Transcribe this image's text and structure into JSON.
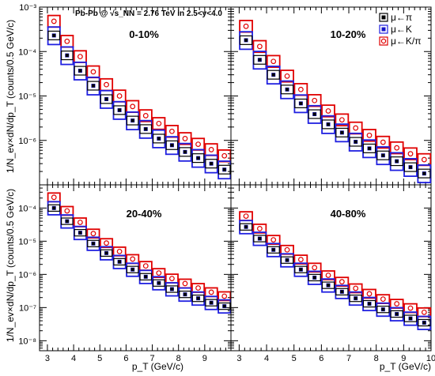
{
  "header": {
    "text": "Pb-Pb @ √s_NN = 2.76 TeV in 2.5<y<4.0"
  },
  "y_axis_title": "1/N_ev×dN/dp_T (counts/0.5 GeV/c)",
  "x_axis_title": "p_T (GeV/c)",
  "legend": [
    {
      "label": "μ←π",
      "color": "#000000",
      "marker": "filled-square"
    },
    {
      "label": "μ←K",
      "color": "#1414c8",
      "marker": "filled-square"
    },
    {
      "label": "μ←K/π",
      "color": "#e00000",
      "marker": "open-circle"
    }
  ],
  "colors": {
    "pi": "#000000",
    "k": "#1414c8",
    "kpi": "#e00000",
    "pi_box": "#000000",
    "k_box": "#2020e0",
    "kpi_box": "#e00000"
  },
  "chart_data": [
    {
      "type": "scatter",
      "title": "0-10%",
      "y_scale": "log",
      "ylim": [
        1e-07,
        0.001
      ],
      "xlim": [
        2.7,
        10
      ],
      "y_tick_labels": [
        "10⁻⁶",
        "10⁻⁵",
        "10⁻⁴",
        "10⁻³"
      ],
      "y_tick_values": [
        1e-06,
        1e-05,
        0.0001,
        0.001
      ],
      "x": [
        3.25,
        3.75,
        4.25,
        4.75,
        5.25,
        5.75,
        6.25,
        6.75,
        7.25,
        7.75,
        8.25,
        8.75,
        9.25,
        9.75
      ],
      "series": [
        {
          "name": "μ←π",
          "values": [
            0.00023,
            8.2e-05,
            3.7e-05,
            1.7e-05,
            8.5e-06,
            4.8e-06,
            2.8e-06,
            1.8e-06,
            1.1e-06,
            7.8e-07,
            5.5e-07,
            4e-07,
            3e-07,
            2.2e-07
          ]
        },
        {
          "name": "μ←K",
          "values": [
            0.00023,
            8.2e-05,
            3.7e-05,
            1.7e-05,
            8.5e-06,
            4.8e-06,
            2.8e-06,
            1.8e-06,
            1.1e-06,
            7.8e-07,
            5.5e-07,
            4e-07,
            3e-07,
            2.2e-07
          ]
        },
        {
          "name": "μ←K/π",
          "values": [
            0.00048,
            0.00017,
            7.7e-05,
            3.5e-05,
            1.8e-05,
            1e-05,
            5.8e-06,
            3.6e-06,
            2.4e-06,
            1.6e-06,
            1.1e-06,
            8.2e-07,
            6.2e-07,
            4.5e-07
          ]
        }
      ]
    },
    {
      "type": "scatter",
      "title": "10-20%",
      "y_scale": "log",
      "ylim": [
        1e-07,
        0.001
      ],
      "xlim": [
        2.7,
        10
      ],
      "y_tick_labels": [],
      "y_tick_values": [
        1e-06,
        1e-05,
        0.0001,
        0.001
      ],
      "x": [
        3.25,
        3.75,
        4.25,
        4.75,
        5.25,
        5.75,
        6.25,
        6.75,
        7.25,
        7.75,
        8.25,
        8.75,
        9.25,
        9.75
      ],
      "series": [
        {
          "name": "μ←π",
          "values": [
            0.00018,
            6.5e-05,
            3e-05,
            1.4e-05,
            6.8e-06,
            3.9e-06,
            2.3e-06,
            1.5e-06,
            9.3e-07,
            6.6e-07,
            4.6e-07,
            3.4e-07,
            2.5e-07,
            1.8e-07
          ]
        },
        {
          "name": "μ←K",
          "values": [
            0.00018,
            6.5e-05,
            3e-05,
            1.4e-05,
            6.8e-06,
            3.9e-06,
            2.3e-06,
            1.5e-06,
            9.3e-07,
            6.6e-07,
            4.6e-07,
            3.4e-07,
            2.5e-07,
            1.8e-07
          ]
        },
        {
          "name": "μ←K/π",
          "values": [
            0.00037,
            0.00013,
            6e-05,
            2.8e-05,
            1.4e-05,
            7.9e-06,
            4.6e-06,
            2.9e-06,
            1.9e-06,
            1.3e-06,
            9.1e-07,
            6.8e-07,
            5e-07,
            3.7e-07
          ]
        }
      ]
    },
    {
      "type": "scatter",
      "title": "20-40%",
      "y_scale": "log",
      "ylim": [
        5e-09,
        0.0005
      ],
      "xlim": [
        2.7,
        10
      ],
      "y_tick_labels": [
        "10⁻⁸",
        "10⁻⁷",
        "10⁻⁶",
        "10⁻⁵",
        "10⁻⁴"
      ],
      "y_tick_values": [
        1e-08,
        1e-07,
        1e-06,
        1e-05,
        0.0001
      ],
      "x": [
        3.25,
        3.75,
        4.25,
        4.75,
        5.25,
        5.75,
        6.25,
        6.75,
        7.25,
        7.75,
        8.25,
        8.75,
        9.25,
        9.75
      ],
      "series": [
        {
          "name": "μ←π",
          "values": [
            0.0001,
            4e-05,
            1.8e-05,
            8.5e-06,
            4.4e-06,
            2.4e-06,
            1.4e-06,
            8.5e-07,
            5.5e-07,
            3.6e-07,
            2.5e-07,
            1.9e-07,
            1.4e-07,
            1.1e-07
          ]
        },
        {
          "name": "μ←K",
          "values": [
            0.0001,
            4e-05,
            1.8e-05,
            8.5e-06,
            4.4e-06,
            2.4e-06,
            1.4e-06,
            8.5e-07,
            5.5e-07,
            3.6e-07,
            2.5e-07,
            1.9e-07,
            1.4e-07,
            1.1e-07
          ]
        },
        {
          "name": "μ←K/π",
          "values": [
            0.00021,
            8.2e-05,
            3.7e-05,
            1.7e-05,
            8.8e-06,
            4.9e-06,
            2.9e-06,
            1.8e-06,
            1.1e-06,
            7.5e-07,
            5.3e-07,
            3.9e-07,
            2.9e-07,
            2.2e-07
          ]
        }
      ]
    },
    {
      "type": "scatter",
      "title": "40-80%",
      "y_scale": "log",
      "ylim": [
        5e-09,
        0.0005
      ],
      "xlim": [
        2.7,
        10
      ],
      "y_tick_labels": [],
      "y_tick_values": [
        1e-08,
        1e-07,
        1e-06,
        1e-05,
        0.0001
      ],
      "x": [
        3.25,
        3.75,
        4.25,
        4.75,
        5.25,
        5.75,
        6.25,
        6.75,
        7.25,
        7.75,
        8.25,
        8.75,
        9.25,
        9.75
      ],
      "series": [
        {
          "name": "μ←π",
          "values": [
            2.7e-05,
            1.2e-05,
            5.5e-06,
            2.7e-06,
            1.4e-06,
            8e-07,
            4.7e-07,
            3e-07,
            1.9e-07,
            1.3e-07,
            8.8e-08,
            6.4e-08,
            4.7e-08,
            3.5e-08
          ]
        },
        {
          "name": "μ←K",
          "values": [
            2.7e-05,
            1.2e-05,
            5.5e-06,
            2.7e-06,
            1.4e-06,
            8e-07,
            4.7e-07,
            3e-07,
            1.9e-07,
            1.3e-07,
            8.8e-08,
            6.4e-08,
            4.7e-08,
            3.5e-08
          ]
        },
        {
          "name": "μ←K/π",
          "values": [
            5.7e-05,
            2.4e-05,
            1.1e-05,
            5.5e-06,
            2.8e-06,
            1.6e-06,
            9.4e-07,
            6e-07,
            3.8e-07,
            2.6e-07,
            1.8e-07,
            1.3e-07,
            9.6e-08,
            7.2e-08
          ]
        }
      ]
    }
  ],
  "x_tick_labels": [
    "3",
    "4",
    "5",
    "6",
    "7",
    "8",
    "9",
    "10"
  ]
}
